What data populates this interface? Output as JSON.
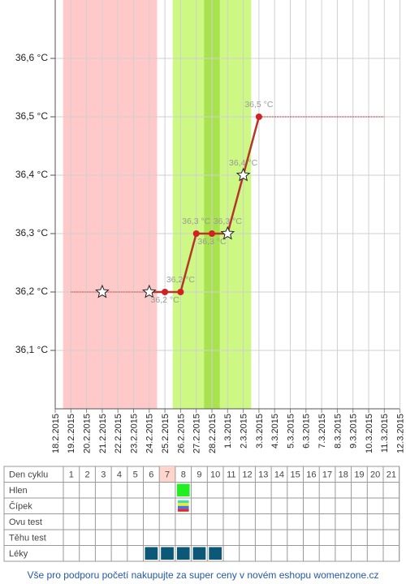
{
  "chart_data": {
    "type": "line",
    "categories": [
      "18.2.2015",
      "19.2.2015",
      "20.2.2015",
      "21.2.2015",
      "22.2.2015",
      "23.2.2015",
      "24.2.2015",
      "25.2.2015",
      "26.2.2015",
      "27.2.2015",
      "28.2.2015",
      "1.3.2015",
      "2.3.2015",
      "3.3.2015",
      "4.3.2015",
      "5.3.2015",
      "6.3.2015",
      "7.3.2015",
      "8.3.2015",
      "9.3.2015",
      "10.3.2015",
      "11.3.2015",
      "12.3.2015"
    ],
    "series": [
      {
        "color": "#b5372b",
        "values": [
          null,
          null,
          null,
          36.2,
          null,
          null,
          36.2,
          36.2,
          36.2,
          36.3,
          36.3,
          36.3,
          36.4,
          36.5,
          null,
          null,
          null,
          null,
          null,
          null,
          null,
          null,
          null
        ],
        "value_labels": [
          null,
          null,
          null,
          null,
          null,
          null,
          null,
          "36,2 °C",
          "36,2 °C",
          "36,3 °C",
          "36,3 °C",
          "36,3 °C",
          "36,4 °C",
          "36,5 °C",
          null,
          null,
          null,
          null,
          null,
          null,
          null,
          null,
          null
        ],
        "markers": [
          null,
          null,
          null,
          "star",
          null,
          null,
          "star",
          "dot",
          "dot",
          "dot",
          "dot",
          "star",
          "star",
          "dot",
          null,
          null,
          null,
          null,
          null,
          null,
          null,
          null,
          null
        ]
      }
    ],
    "ylim": [
      36.0,
      36.7
    ],
    "yticks": [
      {
        "value": 36.1,
        "label": "36,1 °C"
      },
      {
        "value": 36.2,
        "label": "36,2 °C"
      },
      {
        "value": 36.3,
        "label": "36,3 °C"
      },
      {
        "value": 36.4,
        "label": "36,4 °C"
      },
      {
        "value": 36.5,
        "label": "36,5 °C"
      },
      {
        "value": 36.6,
        "label": "36,6 °C"
      }
    ],
    "grid": true,
    "regions": [
      {
        "from": "19.2.2015",
        "to": "24.2.2015",
        "color": "#ffc9c9"
      },
      {
        "from": "26.2.2015",
        "to": "2.3.2015",
        "color": "#ccf883"
      },
      {
        "from": "28.2.2015",
        "to": "28.2.2015",
        "color": "#a8e24e"
      }
    ],
    "reference_lines": [
      {
        "value": 36.2,
        "from": "19.2.2015",
        "to": "25.2.2015"
      },
      {
        "value": 36.5,
        "from": "3.3.2015",
        "to": "11.3.2015"
      }
    ]
  },
  "table": {
    "header_label": "Den cyklu",
    "days": [
      1,
      2,
      3,
      4,
      5,
      6,
      7,
      8,
      9,
      10,
      11,
      12,
      13,
      14,
      15,
      16,
      17,
      18,
      19,
      20,
      21
    ],
    "highlight_day": 7,
    "rows": [
      {
        "label": "Hlen",
        "marks": [
          {
            "day": 8,
            "colors": [
              "#22ee22"
            ]
          }
        ]
      },
      {
        "label": "Čípek",
        "marks": [
          {
            "day": 8,
            "colors": [
              "#44ddaa",
              "#eeee22",
              "#3377ff",
              "#ee2222"
            ]
          }
        ]
      },
      {
        "label": "Ovu test",
        "marks": []
      },
      {
        "label": "Těhu test",
        "marks": []
      },
      {
        "label": "Léky",
        "marks": [
          {
            "day": 6,
            "colors": [
              "#0b5878"
            ]
          },
          {
            "day": 7,
            "colors": [
              "#0b5878"
            ]
          },
          {
            "day": 8,
            "colors": [
              "#0b5878"
            ]
          },
          {
            "day": 9,
            "colors": [
              "#0b5878"
            ]
          },
          {
            "day": 10,
            "colors": [
              "#0b5878"
            ]
          }
        ]
      }
    ]
  },
  "footer": "Vše pro podporu početí nakupujte za super ceny v novém eshopu womenzone.cz"
}
